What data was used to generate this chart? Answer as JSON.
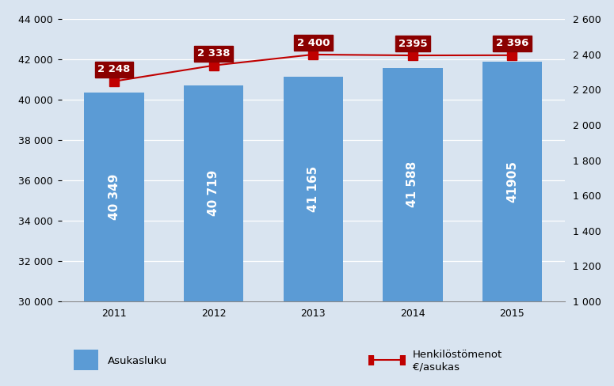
{
  "years": [
    2011,
    2012,
    2013,
    2014,
    2015
  ],
  "bar_values": [
    40349,
    40719,
    41165,
    41588,
    41905
  ],
  "bar_labels": [
    "40 349",
    "40 719",
    "41 165",
    "41 588",
    "41905"
  ],
  "line_values": [
    2248,
    2338,
    2400,
    2395,
    2396
  ],
  "line_labels": [
    "2 248",
    "2 338",
    "2 400",
    "2395",
    "2 396"
  ],
  "bar_color": "#5B9BD5",
  "line_color": "#C00000",
  "label_bg_color": "#8B0000",
  "bar_ylim": [
    30000,
    44000
  ],
  "line_ylim": [
    1000,
    2600
  ],
  "bar_yticks": [
    30000,
    32000,
    34000,
    36000,
    38000,
    40000,
    42000,
    44000
  ],
  "line_yticks": [
    1000,
    1200,
    1400,
    1600,
    1800,
    2000,
    2200,
    2400,
    2600
  ],
  "background_color": "#D9E4F0",
  "plot_bg_color": "#FFFFFF",
  "legend_bar_label": "Asukasluku",
  "legend_line_label": "Henkilöstömenot\n€/asukas",
  "bar_text_color": "#FFFFFF",
  "line_label_text_color": "#FFFFFF"
}
